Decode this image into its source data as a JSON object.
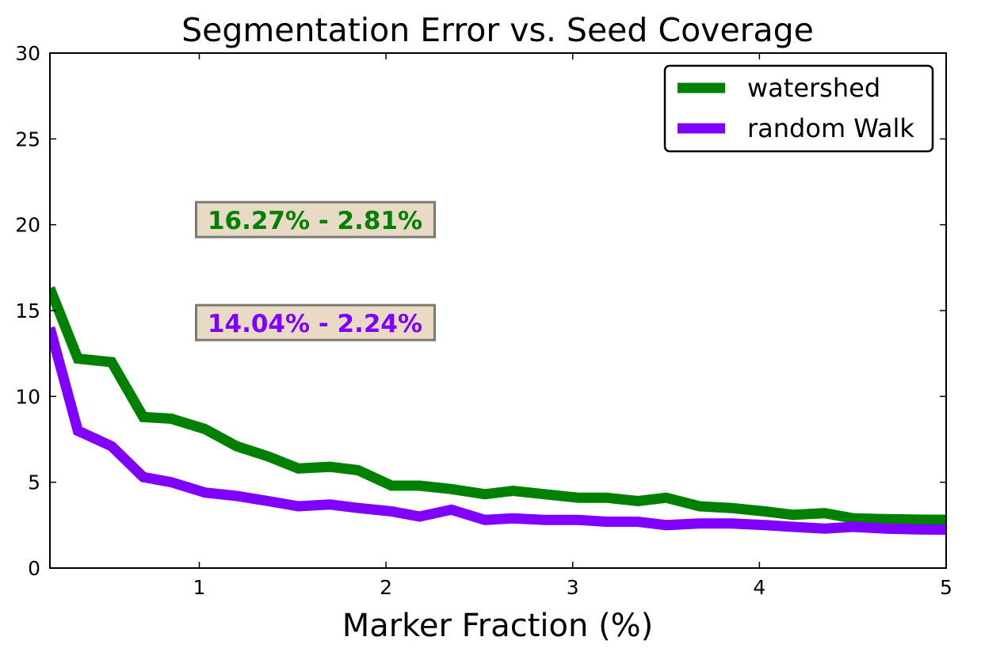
{
  "chart_data": {
    "type": "line",
    "title": "Segmentation Error vs. Seed Coverage",
    "xlabel": "Marker Fraction (%)",
    "ylabel": "",
    "xlim": [
      0.2,
      5
    ],
    "ylim": [
      0,
      30
    ],
    "xticks": [
      {
        "value": 1,
        "label": "1"
      },
      {
        "value": 2,
        "label": "2"
      },
      {
        "value": 3,
        "label": "3"
      },
      {
        "value": 4,
        "label": "4"
      },
      {
        "value": 5,
        "label": "5"
      }
    ],
    "yticks": [
      {
        "value": 0,
        "label": "0"
      },
      {
        "value": 5,
        "label": "5"
      },
      {
        "value": 10,
        "label": "10"
      },
      {
        "value": 15,
        "label": "15"
      },
      {
        "value": 20,
        "label": "20"
      },
      {
        "value": 25,
        "label": "25"
      },
      {
        "value": 30,
        "label": "30"
      }
    ],
    "grid": false,
    "legend": {
      "position": "top-right"
    },
    "x": [
      0.2,
      0.35,
      0.53,
      0.7,
      0.85,
      1.03,
      1.2,
      1.37,
      1.53,
      1.7,
      1.85,
      2.03,
      2.18,
      2.35,
      2.53,
      2.68,
      2.85,
      3.03,
      3.18,
      3.35,
      3.5,
      3.68,
      3.85,
      4.03,
      4.18,
      4.35,
      4.5,
      4.68,
      4.85,
      5.0
    ],
    "series": [
      {
        "name": "watershed",
        "color": "#008000",
        "values": [
          16.3,
          12.2,
          12.0,
          8.8,
          8.7,
          8.1,
          7.1,
          6.5,
          5.8,
          5.9,
          5.7,
          4.8,
          4.8,
          4.6,
          4.3,
          4.5,
          4.3,
          4.1,
          4.1,
          3.9,
          4.1,
          3.6,
          3.5,
          3.3,
          3.1,
          3.2,
          2.9,
          2.85,
          2.82,
          2.81
        ]
      },
      {
        "name": "random Walk",
        "color": "#8000ff",
        "values": [
          14.0,
          8.0,
          7.1,
          5.3,
          5.0,
          4.4,
          4.2,
          3.9,
          3.6,
          3.7,
          3.5,
          3.3,
          3.0,
          3.4,
          2.8,
          2.9,
          2.8,
          2.8,
          2.7,
          2.7,
          2.5,
          2.6,
          2.6,
          2.5,
          2.4,
          2.3,
          2.4,
          2.3,
          2.25,
          2.24
        ]
      }
    ],
    "annotations": [
      {
        "text": "16.27% - 2.81%",
        "color": "#008000",
        "box_color": "#e8dac4",
        "x": 1.0,
        "y": 20.3
      },
      {
        "text": "14.04% - 2.24%",
        "color": "#8000ff",
        "box_color": "#e8dac4",
        "x": 1.0,
        "y": 14.3
      }
    ]
  }
}
